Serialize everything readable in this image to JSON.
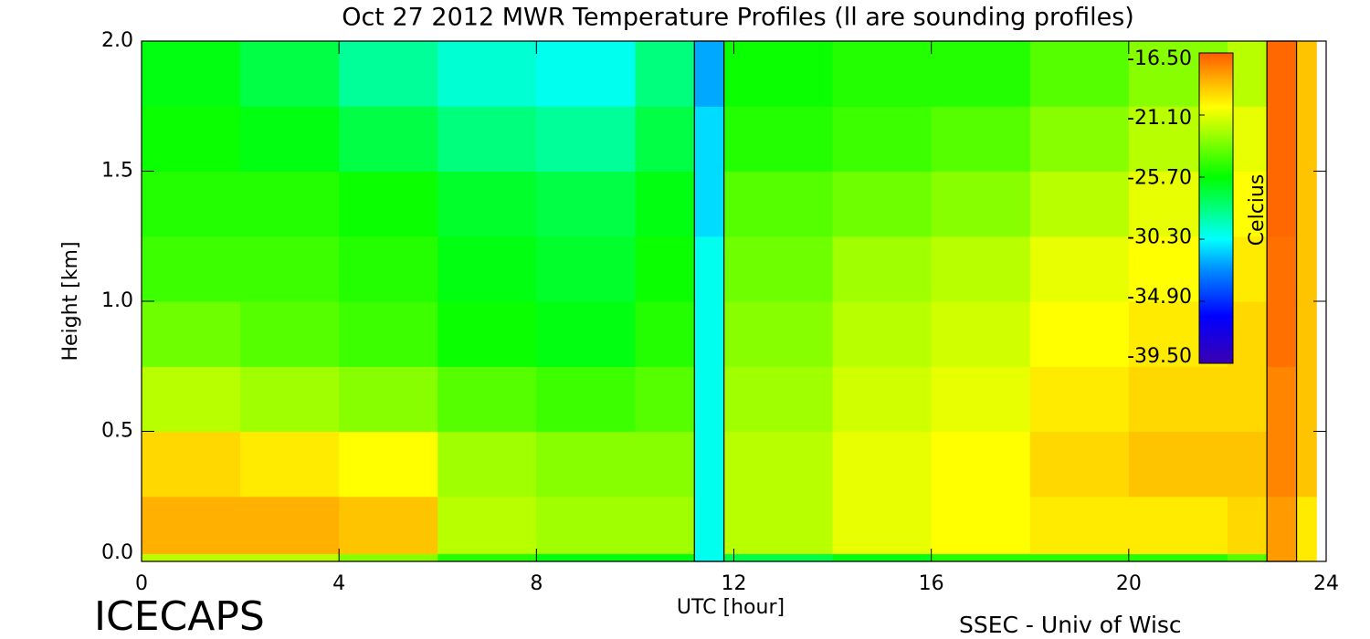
{
  "chart_data": {
    "type": "heatmap",
    "title": "Oct 27 2012 MWR Temperature Profiles (ll are sounding profiles)",
    "x_label": "UTC [hour]",
    "y_label": "Height [km]",
    "colorbar_label": "Celcius",
    "logo": "ICECAPS",
    "credit": "SSEC - Univ of Wisc",
    "xlim": [
      0,
      24
    ],
    "xticks": [
      0,
      4,
      8,
      12,
      16,
      20,
      24
    ],
    "ylim": [
      0,
      2
    ],
    "yticks": [
      {
        "value": 0,
        "label": "0.0"
      },
      {
        "value": 0.5,
        "label": "0.5"
      },
      {
        "value": 1,
        "label": "1.0"
      },
      {
        "value": 1.5,
        "label": "1.5"
      },
      {
        "value": 2,
        "label": "2.0"
      }
    ],
    "x_edges": [
      0,
      2,
      4,
      6,
      8,
      10,
      11.2,
      11.8,
      14,
      16,
      18,
      20,
      22,
      22.8,
      23.4,
      23.8
    ],
    "y_edges": [
      0,
      0.03,
      0.25,
      0.5,
      0.75,
      1,
      1.25,
      1.5,
      1.75,
      2
    ],
    "z": [
      [
        -22,
        -22,
        -23,
        -25,
        -26,
        -26,
        -30,
        -27,
        -26,
        -25,
        -25,
        -25,
        -24,
        -18,
        -20
      ],
      [
        -18.5,
        -18.5,
        -19,
        -22,
        -22.5,
        -22.5,
        -30,
        -22,
        -21,
        -20.5,
        -20,
        -20,
        -19.5,
        -18,
        -20
      ],
      [
        -19.5,
        -20,
        -20.5,
        -22.5,
        -23,
        -23,
        -30,
        -22,
        -21,
        -20.5,
        -19.5,
        -19,
        -19,
        -17.5,
        -19
      ],
      [
        -22,
        -22.5,
        -23,
        -24,
        -24.5,
        -24,
        -30,
        -22.5,
        -21.5,
        -21,
        -20,
        -19.5,
        -19.5,
        -17.5,
        -19
      ],
      [
        -23.5,
        -24,
        -24.5,
        -25.5,
        -26,
        -25,
        -30,
        -23,
        -22,
        -21.5,
        -20.5,
        -20,
        -19.5,
        -17,
        -19
      ],
      [
        -24.5,
        -24.5,
        -25,
        -26,
        -26.5,
        -25.5,
        -30,
        -23.5,
        -22.5,
        -22,
        -21,
        -20.5,
        -20,
        -17,
        -19
      ],
      [
        -25,
        -25,
        -25.5,
        -26.5,
        -27,
        -26,
        -31,
        -24,
        -23.5,
        -23,
        -22,
        -21,
        -20.5,
        -16.8,
        -19
      ],
      [
        -25.5,
        -26,
        -27,
        -28,
        -28.5,
        -27,
        -31,
        -25,
        -24.5,
        -24,
        -23,
        -22,
        -21,
        -16.8,
        -19
      ],
      [
        -26,
        -27,
        -28.5,
        -29.5,
        -30,
        -28,
        -32,
        -25.5,
        -25,
        -25,
        -24,
        -23,
        -22,
        -16.8,
        -19
      ]
    ],
    "soundings": [
      [
        11.2,
        11.8
      ],
      [
        22.8,
        23.4
      ]
    ],
    "zlim": [
      -39.5,
      -16.5
    ],
    "zticks": [
      {
        "value": -16.5,
        "label": "-16.50"
      },
      {
        "value": -21.1,
        "label": "-21.10"
      },
      {
        "value": -25.7,
        "label": "-25.70"
      },
      {
        "value": -30.3,
        "label": "-30.30"
      },
      {
        "value": -34.9,
        "label": "-34.90"
      },
      {
        "value": -39.5,
        "label": "-39.50"
      }
    ],
    "colorscale": [
      [
        -39.5,
        "#3a00b0"
      ],
      [
        -36,
        "#0000ff"
      ],
      [
        -32.5,
        "#0090ff"
      ],
      [
        -30.3,
        "#00ffff"
      ],
      [
        -27.5,
        "#00ff60"
      ],
      [
        -25.7,
        "#00ff00"
      ],
      [
        -22.5,
        "#a0ff00"
      ],
      [
        -20.5,
        "#ffff00"
      ],
      [
        -18.5,
        "#ffb000"
      ],
      [
        -16.5,
        "#ff5a00"
      ]
    ]
  }
}
